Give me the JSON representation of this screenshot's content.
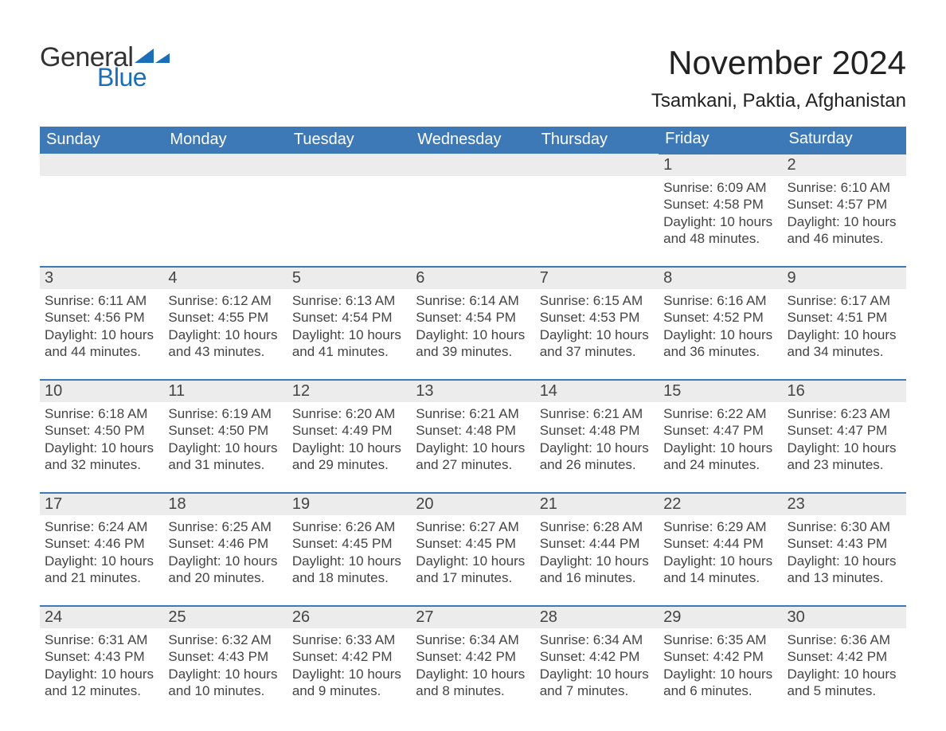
{
  "brand": {
    "general": "General",
    "blue": "Blue",
    "tri_color": "#1a6fb8"
  },
  "title": "November 2024",
  "location": "Tsamkani, Paktia, Afghanistan",
  "colors": {
    "header_bg": "#3d79b7",
    "header_text": "#ffffff",
    "daynum_bg": "#ececec",
    "rule": "#3d79b7",
    "text": "#444444"
  },
  "weekdays": [
    "Sunday",
    "Monday",
    "Tuesday",
    "Wednesday",
    "Thursday",
    "Friday",
    "Saturday"
  ],
  "weeks": [
    [
      null,
      null,
      null,
      null,
      null,
      {
        "n": "1",
        "sunrise": "Sunrise: 6:09 AM",
        "sunset": "Sunset: 4:58 PM",
        "d1": "Daylight: 10 hours",
        "d2": "and 48 minutes."
      },
      {
        "n": "2",
        "sunrise": "Sunrise: 6:10 AM",
        "sunset": "Sunset: 4:57 PM",
        "d1": "Daylight: 10 hours",
        "d2": "and 46 minutes."
      }
    ],
    [
      {
        "n": "3",
        "sunrise": "Sunrise: 6:11 AM",
        "sunset": "Sunset: 4:56 PM",
        "d1": "Daylight: 10 hours",
        "d2": "and 44 minutes."
      },
      {
        "n": "4",
        "sunrise": "Sunrise: 6:12 AM",
        "sunset": "Sunset: 4:55 PM",
        "d1": "Daylight: 10 hours",
        "d2": "and 43 minutes."
      },
      {
        "n": "5",
        "sunrise": "Sunrise: 6:13 AM",
        "sunset": "Sunset: 4:54 PM",
        "d1": "Daylight: 10 hours",
        "d2": "and 41 minutes."
      },
      {
        "n": "6",
        "sunrise": "Sunrise: 6:14 AM",
        "sunset": "Sunset: 4:54 PM",
        "d1": "Daylight: 10 hours",
        "d2": "and 39 minutes."
      },
      {
        "n": "7",
        "sunrise": "Sunrise: 6:15 AM",
        "sunset": "Sunset: 4:53 PM",
        "d1": "Daylight: 10 hours",
        "d2": "and 37 minutes."
      },
      {
        "n": "8",
        "sunrise": "Sunrise: 6:16 AM",
        "sunset": "Sunset: 4:52 PM",
        "d1": "Daylight: 10 hours",
        "d2": "and 36 minutes."
      },
      {
        "n": "9",
        "sunrise": "Sunrise: 6:17 AM",
        "sunset": "Sunset: 4:51 PM",
        "d1": "Daylight: 10 hours",
        "d2": "and 34 minutes."
      }
    ],
    [
      {
        "n": "10",
        "sunrise": "Sunrise: 6:18 AM",
        "sunset": "Sunset: 4:50 PM",
        "d1": "Daylight: 10 hours",
        "d2": "and 32 minutes."
      },
      {
        "n": "11",
        "sunrise": "Sunrise: 6:19 AM",
        "sunset": "Sunset: 4:50 PM",
        "d1": "Daylight: 10 hours",
        "d2": "and 31 minutes."
      },
      {
        "n": "12",
        "sunrise": "Sunrise: 6:20 AM",
        "sunset": "Sunset: 4:49 PM",
        "d1": "Daylight: 10 hours",
        "d2": "and 29 minutes."
      },
      {
        "n": "13",
        "sunrise": "Sunrise: 6:21 AM",
        "sunset": "Sunset: 4:48 PM",
        "d1": "Daylight: 10 hours",
        "d2": "and 27 minutes."
      },
      {
        "n": "14",
        "sunrise": "Sunrise: 6:21 AM",
        "sunset": "Sunset: 4:48 PM",
        "d1": "Daylight: 10 hours",
        "d2": "and 26 minutes."
      },
      {
        "n": "15",
        "sunrise": "Sunrise: 6:22 AM",
        "sunset": "Sunset: 4:47 PM",
        "d1": "Daylight: 10 hours",
        "d2": "and 24 minutes."
      },
      {
        "n": "16",
        "sunrise": "Sunrise: 6:23 AM",
        "sunset": "Sunset: 4:47 PM",
        "d1": "Daylight: 10 hours",
        "d2": "and 23 minutes."
      }
    ],
    [
      {
        "n": "17",
        "sunrise": "Sunrise: 6:24 AM",
        "sunset": "Sunset: 4:46 PM",
        "d1": "Daylight: 10 hours",
        "d2": "and 21 minutes."
      },
      {
        "n": "18",
        "sunrise": "Sunrise: 6:25 AM",
        "sunset": "Sunset: 4:46 PM",
        "d1": "Daylight: 10 hours",
        "d2": "and 20 minutes."
      },
      {
        "n": "19",
        "sunrise": "Sunrise: 6:26 AM",
        "sunset": "Sunset: 4:45 PM",
        "d1": "Daylight: 10 hours",
        "d2": "and 18 minutes."
      },
      {
        "n": "20",
        "sunrise": "Sunrise: 6:27 AM",
        "sunset": "Sunset: 4:45 PM",
        "d1": "Daylight: 10 hours",
        "d2": "and 17 minutes."
      },
      {
        "n": "21",
        "sunrise": "Sunrise: 6:28 AM",
        "sunset": "Sunset: 4:44 PM",
        "d1": "Daylight: 10 hours",
        "d2": "and 16 minutes."
      },
      {
        "n": "22",
        "sunrise": "Sunrise: 6:29 AM",
        "sunset": "Sunset: 4:44 PM",
        "d1": "Daylight: 10 hours",
        "d2": "and 14 minutes."
      },
      {
        "n": "23",
        "sunrise": "Sunrise: 6:30 AM",
        "sunset": "Sunset: 4:43 PM",
        "d1": "Daylight: 10 hours",
        "d2": "and 13 minutes."
      }
    ],
    [
      {
        "n": "24",
        "sunrise": "Sunrise: 6:31 AM",
        "sunset": "Sunset: 4:43 PM",
        "d1": "Daylight: 10 hours",
        "d2": "and 12 minutes."
      },
      {
        "n": "25",
        "sunrise": "Sunrise: 6:32 AM",
        "sunset": "Sunset: 4:43 PM",
        "d1": "Daylight: 10 hours",
        "d2": "and 10 minutes."
      },
      {
        "n": "26",
        "sunrise": "Sunrise: 6:33 AM",
        "sunset": "Sunset: 4:42 PM",
        "d1": "Daylight: 10 hours",
        "d2": "and 9 minutes."
      },
      {
        "n": "27",
        "sunrise": "Sunrise: 6:34 AM",
        "sunset": "Sunset: 4:42 PM",
        "d1": "Daylight: 10 hours",
        "d2": "and 8 minutes."
      },
      {
        "n": "28",
        "sunrise": "Sunrise: 6:34 AM",
        "sunset": "Sunset: 4:42 PM",
        "d1": "Daylight: 10 hours",
        "d2": "and 7 minutes."
      },
      {
        "n": "29",
        "sunrise": "Sunrise: 6:35 AM",
        "sunset": "Sunset: 4:42 PM",
        "d1": "Daylight: 10 hours",
        "d2": "and 6 minutes."
      },
      {
        "n": "30",
        "sunrise": "Sunrise: 6:36 AM",
        "sunset": "Sunset: 4:42 PM",
        "d1": "Daylight: 10 hours",
        "d2": "and 5 minutes."
      }
    ]
  ]
}
